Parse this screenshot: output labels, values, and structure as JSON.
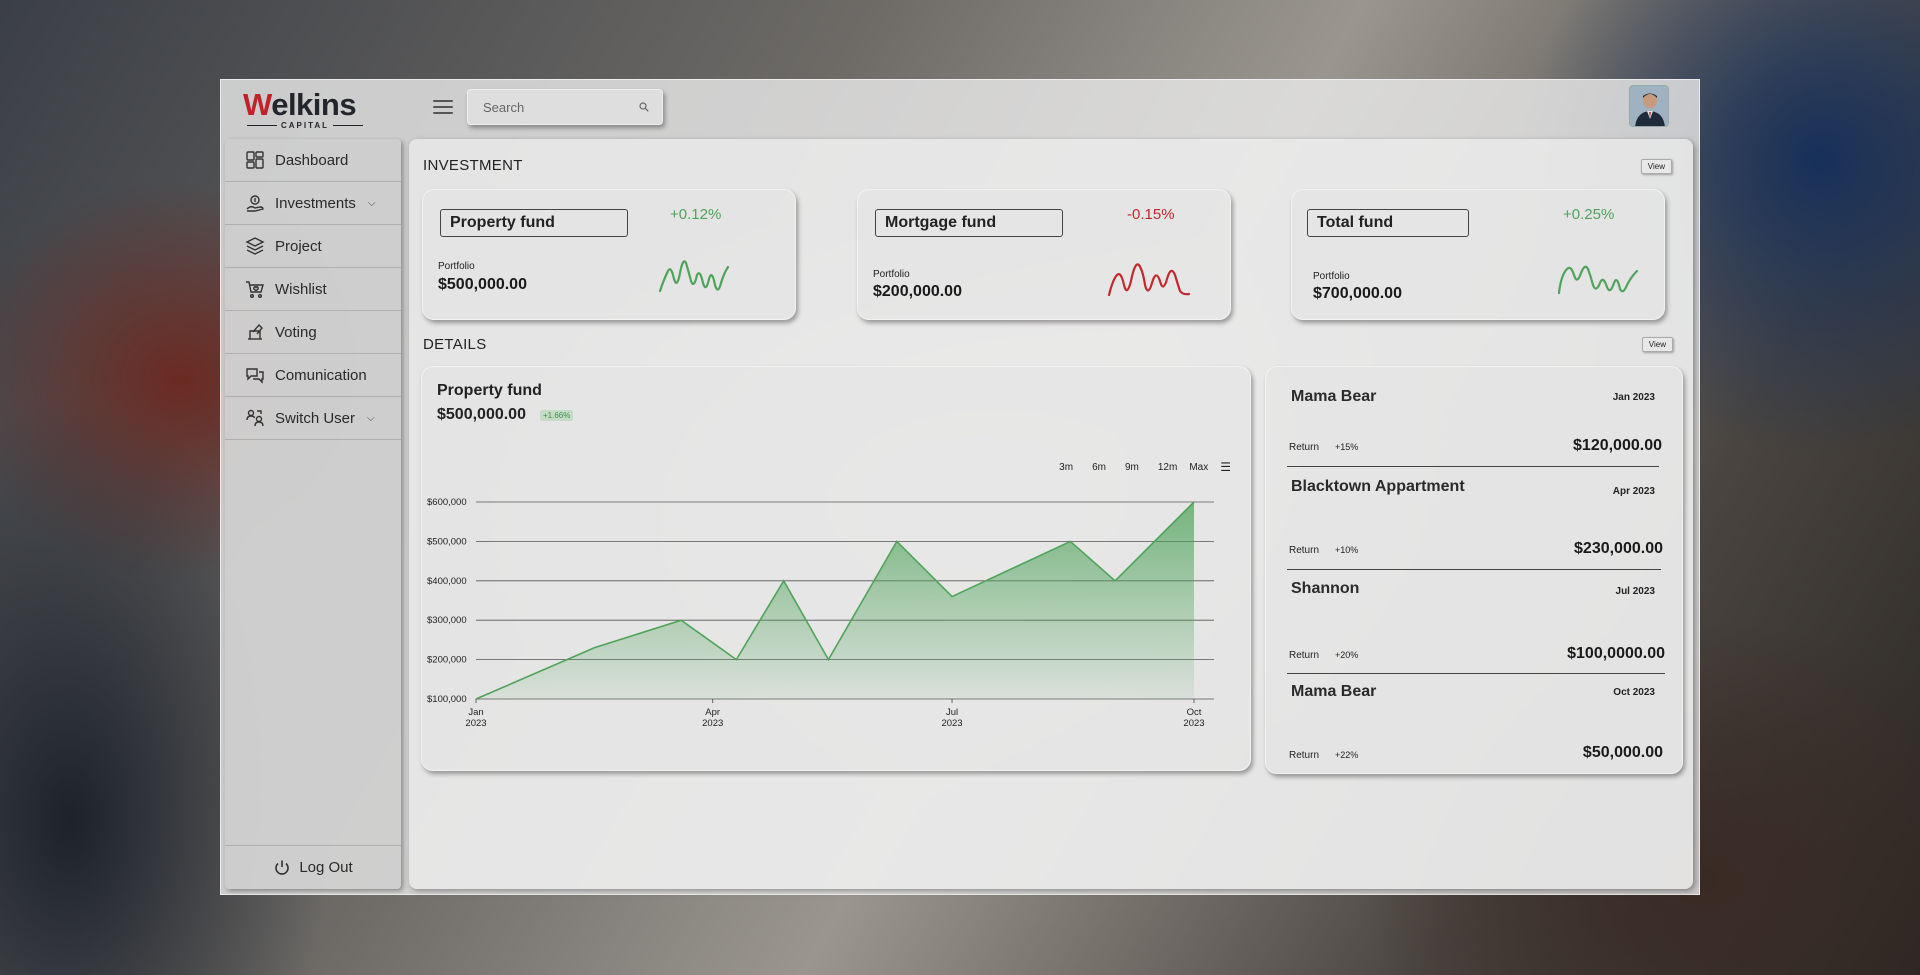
{
  "brand": {
    "name_first": "W",
    "name_rest": "elkins",
    "sub": "CAPITAL"
  },
  "search": {
    "placeholder": "Search"
  },
  "sidebar": {
    "items": [
      {
        "label": "Dashboard"
      },
      {
        "label": "Investments"
      },
      {
        "label": "Project"
      },
      {
        "label": "Wishlist"
      },
      {
        "label": "Voting"
      },
      {
        "label": "Comunication"
      },
      {
        "label": "Switch User"
      }
    ],
    "logout": "Log Out"
  },
  "investment": {
    "title": "INVESTMENT",
    "view": "View",
    "cards": [
      {
        "name": "Property fund",
        "change": "+0.12%",
        "portfolio_label": "Portfolio",
        "value": "$500,000.00",
        "trend": "positive"
      },
      {
        "name": "Mortgage fund",
        "change": "-0.15%",
        "portfolio_label": "Portfolio",
        "value": "$200,000.00",
        "trend": "negative"
      },
      {
        "name": "Total fund",
        "change": "+0.25%",
        "portfolio_label": "Portfolio",
        "value": "$700,000.00",
        "trend": "positive"
      }
    ]
  },
  "details": {
    "title": "DETAILS",
    "view": "View",
    "chart": {
      "title": "Property fund",
      "amount": "$500,000.00",
      "badge": "+1.66%",
      "ranges": [
        "3m",
        "6m",
        "9m",
        "12m",
        "Max"
      ]
    },
    "returns": [
      {
        "name": "Mama Bear",
        "date": "Jan 2023",
        "label": "Return",
        "pct": "+15%",
        "amount": "$120,000.00"
      },
      {
        "name": "Blacktown Appartment",
        "date": "Apr 2023",
        "label": "Return",
        "pct": "+10%",
        "amount": "$230,000.00"
      },
      {
        "name": "Shannon",
        "date": "Jul 2023",
        "label": "Return",
        "pct": "+20%",
        "amount": "$100,0000.00"
      },
      {
        "name": "Mama Bear",
        "date": "Oct 2023",
        "label": "Return",
        "pct": "+22%",
        "amount": "$50,000.00"
      }
    ]
  },
  "colors": {
    "positive": "#4fa35a",
    "negative": "#c2282c",
    "brand_red": "#c0222a"
  },
  "chart_data": {
    "type": "area",
    "title": "Property fund",
    "x": [
      "2023-01-01",
      "2023-02-15",
      "2023-03-20",
      "2023-04-10",
      "2023-04-28",
      "2023-05-15",
      "2023-06-10",
      "2023-07-01",
      "2023-08-15",
      "2023-09-01",
      "2023-10-01"
    ],
    "y": [
      100000,
      230000,
      300000,
      200000,
      400000,
      200000,
      500000,
      360000,
      500000,
      400000,
      600000
    ],
    "x_tick_labels": [
      [
        "Jan",
        "2023"
      ],
      [
        "Apr",
        "2023"
      ],
      [
        "Jul",
        "2023"
      ],
      [
        "Oct",
        "2023"
      ]
    ],
    "y_tick_labels": [
      "$600,000",
      "$500,000",
      "$400,000",
      "$300,000",
      "$200,000",
      "$100,000"
    ],
    "ylim": [
      100000,
      600000
    ],
    "grid": true,
    "color": "#4fa35a"
  }
}
